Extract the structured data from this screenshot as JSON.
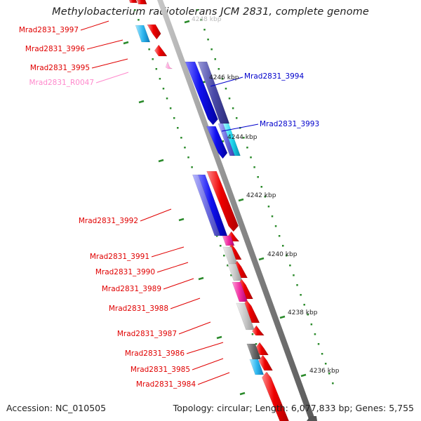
{
  "title": "Methylobacterium radiotolerans JCM 2831, complete genome",
  "footer": {
    "accession": "Accession: NC_010505",
    "topology": "Topology: circular; Length: 6,077,833 bp; Genes: 5,755"
  },
  "colors": {
    "backbone": "#8a8a8a",
    "ruler": "#2a8a2a",
    "forward_gene": "#e00000",
    "reverse_gene": "#0000e0",
    "rna_gene": "#ff88cc"
  },
  "scale_ticks": [
    "4246 kbp",
    "4244 kbp",
    "4242 kbp",
    "4240 kbp",
    "4238 kbp",
    "4236 kbp"
  ],
  "top_clipped_tick": "4248 kbp",
  "left_labels": [
    {
      "text": "Mrad2831_3997",
      "color": "#e00000"
    },
    {
      "text": "Mrad2831_3996",
      "color": "#e00000"
    },
    {
      "text": "Mrad2831_3995",
      "color": "#e00000"
    },
    {
      "text": "Mrad2831_R0047",
      "color": "#ff88cc"
    },
    {
      "text": "Mrad2831_3992",
      "color": "#e00000"
    },
    {
      "text": "Mrad2831_3991",
      "color": "#e00000"
    },
    {
      "text": "Mrad2831_3990",
      "color": "#e00000"
    },
    {
      "text": "Mrad2831_3989",
      "color": "#e00000"
    },
    {
      "text": "Mrad2831_3988",
      "color": "#e00000"
    },
    {
      "text": "Mrad2831_3987",
      "color": "#e00000"
    },
    {
      "text": "Mrad2831_3986",
      "color": "#e00000"
    },
    {
      "text": "Mrad2831_3985",
      "color": "#e00000"
    },
    {
      "text": "Mrad2831_3984",
      "color": "#e00000"
    }
  ],
  "right_labels": [
    {
      "text": "Mrad2831_3994",
      "color": "#0000cc"
    },
    {
      "text": "Mrad2831_3993",
      "color": "#0000cc"
    }
  ]
}
